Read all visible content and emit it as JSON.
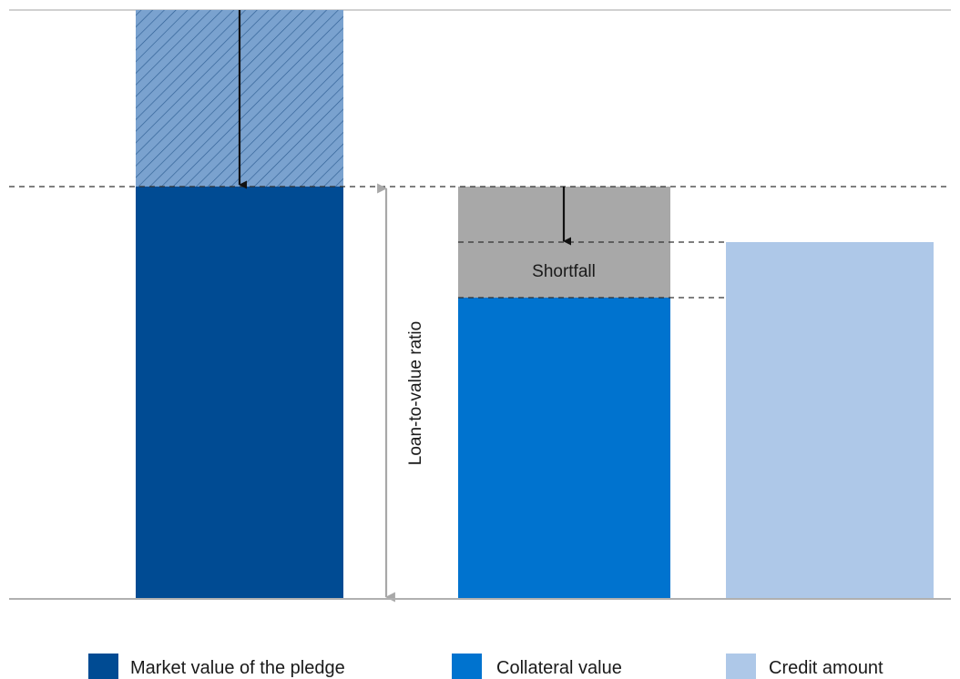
{
  "labels": {
    "shortfall": "Shortfall",
    "loan_to_value": "Loan-to-value ratio"
  },
  "legend": [
    {
      "label": "Market value of the pledge",
      "color": "#004b93"
    },
    {
      "label": "Collateral value",
      "color": "#0073cf"
    },
    {
      "label": "Credit amount",
      "color": "#aec8e8"
    }
  ],
  "colors": {
    "market_value": "#004b93",
    "market_value_hatched": "#7aa2cf",
    "collateral_value": "#0073cf",
    "shortfall": "#a8a8a8",
    "credit_amount": "#aec8e8",
    "ltv_arrow": "#a8a8a8",
    "guide_line": "#333333",
    "baseline": "#b0b0b0"
  },
  "icons": {
    "reduction_arrow": "arrow-down-icon",
    "ltv_arrow": "double-arrow-vertical-icon"
  }
}
